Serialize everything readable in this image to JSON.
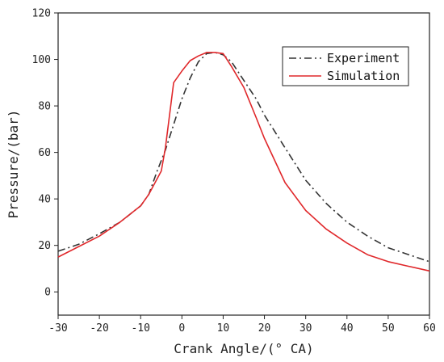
{
  "chart_data": {
    "type": "line",
    "title": "",
    "xlabel": "Crank Angle/(° CA)",
    "ylabel": "Pressure/(bar)",
    "xlim": [
      -30,
      60
    ],
    "ylim": [
      -10,
      120
    ],
    "xticks": [
      -30,
      -20,
      -10,
      0,
      10,
      20,
      30,
      40,
      50,
      60
    ],
    "yticks": [
      0,
      20,
      40,
      60,
      80,
      100,
      120
    ],
    "grid": false,
    "legend": "top-right",
    "series": [
      {
        "name": "Experiment",
        "color": "#333333",
        "style": "dash-dot",
        "points": [
          [
            -30,
            17.5
          ],
          [
            -25,
            20.5
          ],
          [
            -20,
            25
          ],
          [
            -15,
            30
          ],
          [
            -10,
            37
          ],
          [
            -8,
            42
          ],
          [
            -6,
            52
          ],
          [
            -4,
            61
          ],
          [
            -2,
            72
          ],
          [
            0,
            83
          ],
          [
            2,
            92
          ],
          [
            4,
            99
          ],
          [
            6,
            102.5
          ],
          [
            8,
            103
          ],
          [
            10,
            102
          ],
          [
            12,
            99
          ],
          [
            15,
            91
          ],
          [
            18,
            83
          ],
          [
            20,
            76
          ],
          [
            25,
            62
          ],
          [
            30,
            48
          ],
          [
            35,
            38
          ],
          [
            40,
            30
          ],
          [
            45,
            24
          ],
          [
            50,
            19
          ],
          [
            55,
            16
          ],
          [
            60,
            13
          ]
        ]
      },
      {
        "name": "Simulation",
        "color": "#e0282b",
        "style": "solid",
        "points": [
          [
            -30,
            15
          ],
          [
            -25,
            19.5
          ],
          [
            -20,
            24
          ],
          [
            -15,
            30
          ],
          [
            -10,
            37
          ],
          [
            -8,
            42
          ],
          [
            -5,
            52
          ],
          [
            -4,
            62
          ],
          [
            -2,
            90
          ],
          [
            0,
            95
          ],
          [
            2,
            99.5
          ],
          [
            4,
            101.5
          ],
          [
            6,
            103
          ],
          [
            8,
            103
          ],
          [
            10,
            102.5
          ],
          [
            12,
            97
          ],
          [
            15,
            88
          ],
          [
            18,
            75
          ],
          [
            20,
            66
          ],
          [
            25,
            47
          ],
          [
            30,
            35
          ],
          [
            35,
            27
          ],
          [
            40,
            21
          ],
          [
            45,
            16
          ],
          [
            50,
            13
          ],
          [
            55,
            11
          ],
          [
            60,
            9
          ]
        ]
      }
    ]
  }
}
